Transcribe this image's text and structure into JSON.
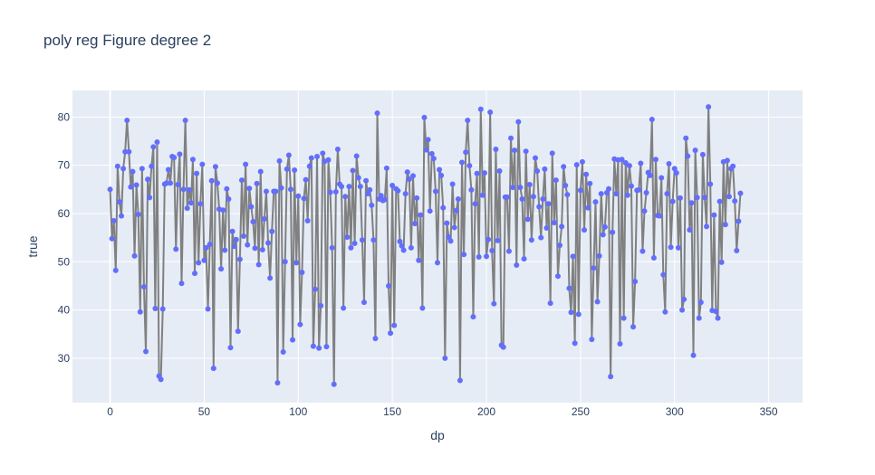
{
  "chart_data": {
    "type": "line",
    "mode": "lines+markers",
    "title": "poly reg Figure degree 2",
    "xlabel": "dp",
    "ylabel": "true",
    "xlim": [
      -20,
      368
    ],
    "ylim": [
      20.8,
      85.5
    ],
    "xticks": [
      0,
      50,
      100,
      150,
      200,
      250,
      300,
      350
    ],
    "yticks": [
      30,
      40,
      50,
      60,
      70,
      80
    ],
    "grid": true,
    "legend": "none",
    "colors": {
      "plot_bg": "#e5ecf6",
      "line": "#808080",
      "marker": "#636efa",
      "grid": "#ffffff",
      "text": "#2a3f5f"
    },
    "series": [
      {
        "values": [
          65.0,
          54.8,
          58.5,
          48.2,
          69.8,
          62.4,
          59.5,
          69.3,
          72.8,
          79.3,
          72.8,
          65.5,
          68.7,
          51.2,
          65.9,
          59.8,
          39.6,
          69.3,
          44.8,
          31.4,
          67.1,
          63.3,
          69.8,
          73.8,
          40.3,
          74.8,
          26.3,
          25.6,
          40.2,
          66.1,
          66.3,
          69.1,
          66.3,
          71.8,
          71.6,
          52.6,
          66.0,
          72.3,
          45.5,
          65.0,
          79.3,
          61.1,
          64.9,
          62.2,
          71.2,
          47.6,
          68.3,
          49.8,
          62.0,
          70.2,
          50.3,
          52.9,
          40.2,
          53.6,
          66.8,
          27.9,
          69.7,
          66.3,
          60.9,
          48.5,
          60.7,
          52.4,
          65.1,
          63.0,
          32.2,
          56.3,
          53.2,
          54.6,
          35.6,
          50.5,
          66.9,
          55.3,
          70.2,
          53.5,
          65.2,
          61.4,
          58.3,
          52.8,
          66.2,
          49.4,
          68.7,
          52.5,
          58.9,
          64.6,
          53.9,
          46.6,
          56.3,
          64.6,
          64.6,
          24.9,
          70.9,
          65.3,
          31.3,
          50.0,
          69.2,
          72.1,
          65.0,
          33.8,
          69.0,
          49.8,
          63.6,
          37.0,
          47.8,
          63.1,
          67.0,
          58.5,
          69.8,
          71.5,
          32.5,
          44.3,
          71.8,
          32.1,
          40.9,
          72.5,
          70.8,
          32.4,
          71.1,
          64.4,
          52.9,
          24.6,
          64.5,
          73.3,
          66.1,
          65.6,
          40.4,
          63.5,
          55.1,
          65.6,
          52.9,
          68.9,
          53.8,
          71.9,
          67.4,
          65.6,
          54.5,
          41.6,
          66.8,
          64.1,
          64.9,
          61.7,
          54.5,
          34.1,
          80.8,
          63.0,
          63.7,
          62.7,
          62.9,
          69.4,
          45.0,
          35.2,
          65.8,
          36.8,
          65.1,
          64.7,
          54.2,
          53.3,
          52.4,
          64.1,
          68.6,
          67.1,
          52.9,
          67.8,
          57.9,
          63.2,
          50.3,
          59.7,
          40.4,
          79.9,
          73.2,
          75.3,
          60.5,
          72.4,
          71.4,
          64.6,
          49.8,
          69.1,
          67.9,
          61.2,
          30.0,
          58.0,
          55.1,
          54.3,
          66.1,
          57.1,
          60.6,
          63.0,
          25.4,
          70.6,
          51.5,
          72.7,
          79.3,
          69.9,
          64.9,
          38.6,
          62.0,
          68.3,
          51.0,
          81.6,
          63.8,
          68.4,
          51.1,
          54.6,
          81.0,
          52.3,
          41.3,
          73.3,
          54.4,
          68.8,
          32.7,
          32.3,
          63.4,
          63.4,
          52.2,
          75.6,
          65.4,
          73.1,
          49.3,
          79.0,
          65.4,
          63.0,
          50.6,
          72.9,
          58.8,
          66.0,
          54.5,
          63.5,
          71.5,
          68.8,
          61.4,
          55.0,
          63.0,
          69.2,
          57.0,
          62.0,
          41.4,
          72.5,
          58.1,
          66.9,
          47.0,
          53.4,
          57.3,
          69.7,
          65.8,
          63.9,
          44.5,
          39.5,
          51.1,
          33.1,
          70.1,
          39.1,
          64.8,
          70.7,
          56.6,
          68.1,
          61.2,
          66.2,
          33.9,
          48.7,
          62.4,
          41.7,
          51.2,
          64.1,
          55.6,
          57.2,
          64.3,
          65.1,
          26.2,
          56.1,
          71.3,
          64.1,
          71.1,
          33.0,
          71.2,
          38.3,
          70.5,
          63.8,
          69.9,
          65.7,
          36.5,
          45.9,
          64.8,
          64.9,
          70.4,
          52.2,
          60.5,
          64.3,
          68.5,
          67.9,
          79.5,
          50.8,
          71.2,
          59.6,
          59.5,
          67.4,
          47.3,
          39.6,
          64.1,
          70.3,
          53.0,
          62.5,
          69.3,
          68.4,
          52.9,
          63.2,
          40.0,
          42.2,
          75.6,
          71.9,
          56.6,
          62.2,
          30.6,
          73.1,
          63.3,
          38.3,
          41.6,
          72.2,
          63.3,
          57.3,
          82.1,
          66.1,
          39.9,
          59.7,
          39.7,
          38.3,
          62.5,
          49.9,
          70.7,
          57.7,
          71.0,
          63.5,
          69.3,
          69.8,
          62.6,
          52.3,
          58.4,
          64.2
        ]
      }
    ]
  }
}
